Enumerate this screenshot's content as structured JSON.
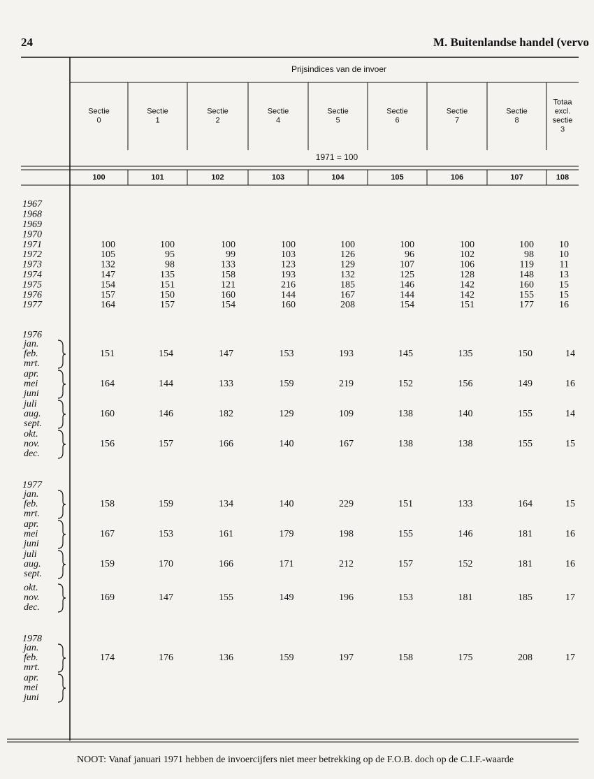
{
  "header": {
    "page": "24",
    "title": "M.  Buitenlandse handel (vervo"
  },
  "table": {
    "group_header": "Prijsindices van de invoer",
    "base": "1971 = 100",
    "columns": [
      {
        "lines": [
          "Sectie",
          "0"
        ],
        "number": "100"
      },
      {
        "lines": [
          "Sectie",
          "1"
        ],
        "number": "101"
      },
      {
        "lines": [
          "Sectie",
          "2"
        ],
        "number": "102"
      },
      {
        "lines": [
          "Sectie",
          "4"
        ],
        "number": "103"
      },
      {
        "lines": [
          "Sectie",
          "5"
        ],
        "number": "104"
      },
      {
        "lines": [
          "Sectie",
          "6"
        ],
        "number": "105"
      },
      {
        "lines": [
          "Sectie",
          "7"
        ],
        "number": "106"
      },
      {
        "lines": [
          "Sectie",
          "8"
        ],
        "number": "107"
      },
      {
        "lines": [
          "Totaa",
          "excl.",
          "sectie",
          "3"
        ],
        "number": "108"
      }
    ],
    "years": [
      {
        "label": "1967",
        "values": []
      },
      {
        "label": "1968",
        "values": []
      },
      {
        "label": "1969",
        "values": []
      },
      {
        "label": "1970",
        "values": []
      },
      {
        "label": "1971",
        "values": [
          "100",
          "100",
          "100",
          "100",
          "100",
          "100",
          "100",
          "100",
          "10"
        ]
      },
      {
        "label": "1972",
        "values": [
          "105",
          "95",
          "99",
          "103",
          "126",
          "96",
          "102",
          "98",
          "10"
        ]
      },
      {
        "label": "1973",
        "values": [
          "132",
          "98",
          "133",
          "123",
          "129",
          "107",
          "106",
          "119",
          "11"
        ]
      },
      {
        "label": "1974",
        "values": [
          "147",
          "135",
          "158",
          "193",
          "132",
          "125",
          "128",
          "148",
          "13"
        ]
      },
      {
        "label": "1975",
        "values": [
          "154",
          "151",
          "121",
          "216",
          "185",
          "146",
          "142",
          "160",
          "15"
        ]
      },
      {
        "label": "1976",
        "values": [
          "157",
          "150",
          "160",
          "144",
          "167",
          "144",
          "142",
          "155",
          "15"
        ]
      },
      {
        "label": "1977",
        "values": [
          "164",
          "157",
          "154",
          "160",
          "208",
          "154",
          "151",
          "177",
          "16"
        ]
      }
    ],
    "periods": [
      {
        "year": "1976",
        "groups": [
          {
            "months": [
              "jan.",
              "feb.",
              "mrt."
            ],
            "values": [
              "151",
              "154",
              "147",
              "153",
              "193",
              "145",
              "135",
              "150",
              "14"
            ]
          },
          {
            "months": [
              "apr.",
              "mei",
              "juni"
            ],
            "values": [
              "164",
              "144",
              "133",
              "159",
              "219",
              "152",
              "156",
              "149",
              "16"
            ]
          },
          {
            "months": [
              "juli",
              "aug.",
              "sept."
            ],
            "values": [
              "160",
              "146",
              "182",
              "129",
              "109",
              "138",
              "140",
              "155",
              "14"
            ]
          },
          {
            "months": [
              "okt.",
              "nov.",
              "dec."
            ],
            "values": [
              "156",
              "157",
              "166",
              "140",
              "167",
              "138",
              "138",
              "155",
              "15"
            ]
          }
        ]
      },
      {
        "year": "1977",
        "groups": [
          {
            "months": [
              "jan.",
              "feb.",
              "mrt."
            ],
            "values": [
              "158",
              "159",
              "134",
              "140",
              "229",
              "151",
              "133",
              "164",
              "15"
            ]
          },
          {
            "months": [
              "apr.",
              "mei",
              "juni"
            ],
            "values": [
              "167",
              "153",
              "161",
              "179",
              "198",
              "155",
              "146",
              "181",
              "16"
            ]
          },
          {
            "months": [
              "juli",
              "aug.",
              "sept."
            ],
            "values": [
              "159",
              "170",
              "166",
              "171",
              "212",
              "157",
              "152",
              "181",
              "16"
            ]
          },
          {
            "months": [
              "okt.",
              "nov.",
              "dec."
            ],
            "values": [
              "169",
              "147",
              "155",
              "149",
              "196",
              "153",
              "181",
              "185",
              "17"
            ]
          }
        ]
      },
      {
        "year": "1978",
        "groups": [
          {
            "months": [
              "jan.",
              "feb.",
              "mrt."
            ],
            "values": [
              "174",
              "176",
              "136",
              "159",
              "197",
              "158",
              "175",
              "208",
              "17"
            ]
          },
          {
            "months": [
              "apr.",
              "mei",
              "juni"
            ],
            "values": []
          }
        ]
      }
    ]
  },
  "note": "NOOT:  Vanaf januari 1971 hebben de invoercijfers niet meer betrekking op de F.O.B. doch op de C.I.F.-waarde"
}
